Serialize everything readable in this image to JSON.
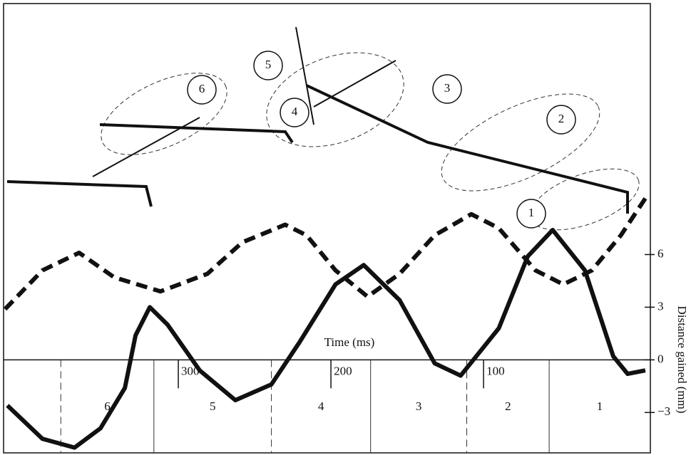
{
  "chart_data": {
    "type": "line",
    "xlabel": "Time (ms)",
    "ylabel": "Distance gained (mm)",
    "xlim": [
      -9.3,
      414.5
    ],
    "xticks": [
      100,
      200,
      300
    ],
    "x_reversed": true,
    "ylim": [
      -5.3,
      20.3
    ],
    "yticks": [
      {
        "value": -3,
        "label": "−3"
      },
      0,
      3,
      6
    ],
    "phase_bounds": [
      57,
      111,
      174,
      239,
      316,
      377
    ],
    "phase_labels": [
      "1",
      "2",
      "3",
      "4",
      "5",
      "6"
    ],
    "illustration_labels": [
      "1",
      "2",
      "3",
      "4",
      "5",
      "6"
    ],
    "series": [
      {
        "color": "#111111",
        "style": "solid",
        "x": [
          -6,
          5.6,
          15,
          33.6,
          54.7,
          71,
          90,
          115,
          132,
          155,
          178.5,
          197,
          220.6,
          239,
          262.6,
          286,
          307,
          318.7,
          328,
          335,
          351,
          368,
          389,
          412
        ],
        "values": [
          -0.6,
          -0.8,
          0.2,
          5.1,
          7.4,
          5.9,
          1.8,
          -0.9,
          -0.2,
          3.4,
          5.4,
          4.3,
          1.0,
          -1.4,
          -2.3,
          -0.6,
          2.0,
          3.0,
          1.4,
          -1.6,
          -3.9,
          -5.0,
          -4.5,
          -2.6
        ]
      },
      {
        "color": "#111111",
        "style": "dashed",
        "x": [
          -6,
          10,
          29,
          47.7,
          66,
          90,
          108,
          132,
          155,
          176,
          197,
          216,
          230,
          258,
          281,
          311.7,
          342,
          365,
          389,
          414.5
        ],
        "values": [
          9.2,
          7.1,
          5.1,
          4.3,
          5.1,
          7.5,
          8.3,
          7.1,
          4.9,
          3.6,
          5.1,
          7.1,
          7.7,
          6.7,
          4.9,
          3.9,
          4.7,
          6.1,
          5.1,
          2.8
        ]
      }
    ]
  }
}
